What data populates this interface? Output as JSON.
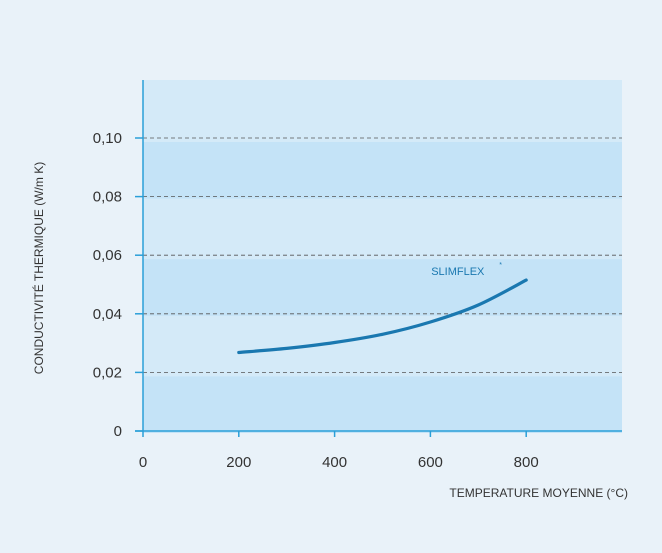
{
  "chart_data": {
    "type": "line",
    "xlabel": "TEMPERATURE MOYENNE (°C)",
    "ylabel": "CONDUCTIVITÉ THERMIQUE (W/m K)",
    "xlim": [
      0,
      1000
    ],
    "ylim": [
      0,
      0.1
    ],
    "x_ticks": [
      0,
      200,
      400,
      600,
      800
    ],
    "x_tick_labels": [
      "0",
      "200",
      "400",
      "600",
      "800"
    ],
    "y_ticks": [
      0,
      0.02,
      0.04,
      0.06,
      0.08,
      0.1
    ],
    "y_tick_labels": [
      "0",
      "0,02",
      "0,04",
      "0,06",
      "0,08",
      "0,10"
    ],
    "grid": "horizontal dashed",
    "series": [
      {
        "name": "SLIMFLEX",
        "name_sup": "*",
        "x": [
          200,
          300,
          400,
          500,
          600,
          700,
          800
        ],
        "y": [
          0.0268,
          0.0282,
          0.0302,
          0.033,
          0.0372,
          0.043,
          0.0515
        ]
      }
    ]
  },
  "colors": {
    "page_background": "#e9f2f9",
    "band_light": "#d4eaf8",
    "band_dark": "#c4e3f7",
    "axis": "#2a9fd8",
    "grid": "#555555",
    "line": "#1a78b0",
    "text": "#333333"
  }
}
